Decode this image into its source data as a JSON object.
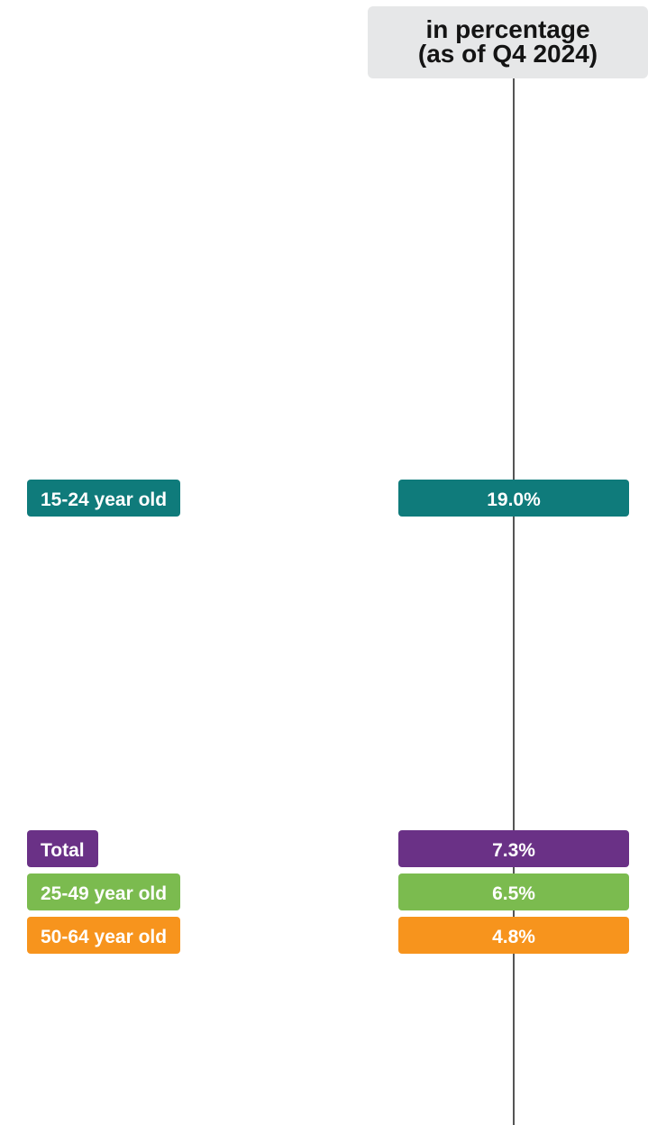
{
  "header": {
    "line1": "in percentage",
    "line2": "(as of Q4 2024)"
  },
  "chart_data": {
    "type": "dot-plot",
    "series": [
      {
        "name": "15-24 year old",
        "value": 19.0,
        "label": "19.0%",
        "color": "#0f7b7b"
      },
      {
        "name": "Total",
        "value": 7.3,
        "label": "7.3%",
        "color": "#6a3186"
      },
      {
        "name": "25-49 year old",
        "value": 6.5,
        "label": "6.5%",
        "color": "#7bbb4f"
      },
      {
        "name": "50-64 year old",
        "value": 4.8,
        "label": "4.8%",
        "color": "#f7941d"
      }
    ],
    "axis_color": "#555555"
  }
}
